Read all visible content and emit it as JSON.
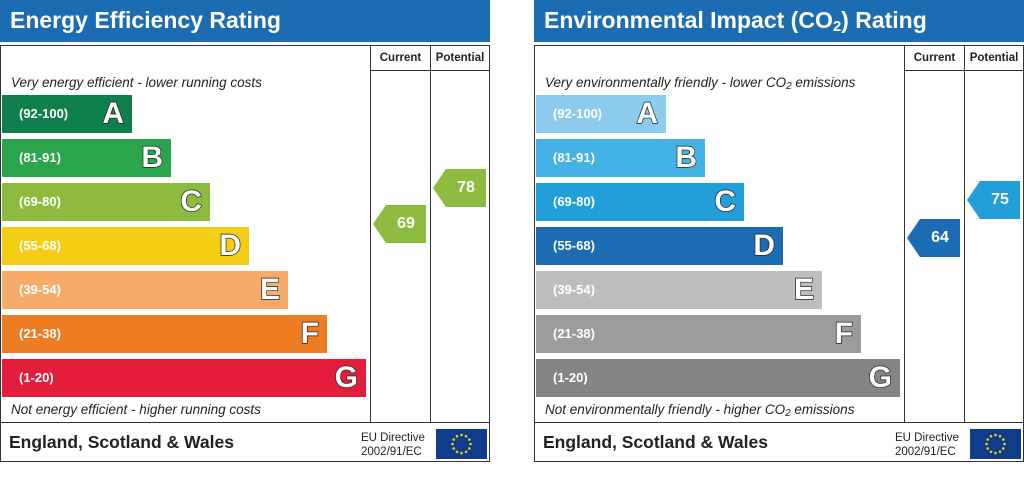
{
  "chart_data": [
    {
      "type": "bar",
      "title": "Energy Efficiency Rating",
      "columns": [
        "Current",
        "Potential"
      ],
      "top_note": "Very energy efficient - lower running costs",
      "bottom_note": "Not energy efficient - higher running costs",
      "bands": [
        {
          "range": "(92-100)",
          "letter": "A",
          "color": "#0f7f4b",
          "min": 92
        },
        {
          "range": "(81-91)",
          "letter": "B",
          "color": "#2aa54b",
          "min": 81
        },
        {
          "range": "(69-80)",
          "letter": "C",
          "color": "#8cbb3f",
          "min": 69
        },
        {
          "range": "(55-68)",
          "letter": "D",
          "color": "#f5cd14",
          "min": 55
        },
        {
          "range": "(39-54)",
          "letter": "E",
          "color": "#f5ac6a",
          "min": 39
        },
        {
          "range": "(21-38)",
          "letter": "F",
          "color": "#ee7c22",
          "min": 21
        },
        {
          "range": "(1-20)",
          "letter": "G",
          "color": "#e31d3b",
          "min": 1
        }
      ],
      "current": {
        "value": 69,
        "label": "69",
        "color": "#8cbb3f"
      },
      "potential": {
        "value": 78,
        "label": "78",
        "color": "#8cbb3f"
      },
      "region": "England, Scotland & Wales",
      "directive": [
        "EU Directive",
        "2002/91/EC"
      ]
    },
    {
      "type": "bar",
      "title": "Environmental Impact (CO2) Rating",
      "columns": [
        "Current",
        "Potential"
      ],
      "top_note": "Very environmentally friendly - lower CO2 emissions",
      "bottom_note": "Not environmentally friendly - higher CO2 emissions",
      "bands": [
        {
          "range": "(92-100)",
          "letter": "A",
          "color": "#8ccbee",
          "min": 92
        },
        {
          "range": "(81-91)",
          "letter": "B",
          "color": "#45b2e6",
          "min": 81
        },
        {
          "range": "(69-80)",
          "letter": "C",
          "color": "#229fd9",
          "min": 69
        },
        {
          "range": "(55-68)",
          "letter": "D",
          "color": "#1c6cb4",
          "min": 55
        },
        {
          "range": "(39-54)",
          "letter": "E",
          "color": "#bdbdbd",
          "min": 39
        },
        {
          "range": "(21-38)",
          "letter": "F",
          "color": "#9c9c9c",
          "min": 21
        },
        {
          "range": "(1-20)",
          "letter": "G",
          "color": "#858585",
          "min": 1
        }
      ],
      "current": {
        "value": 64,
        "label": "64",
        "color": "#1c6cb4"
      },
      "potential": {
        "value": 75,
        "label": "75",
        "color": "#229fd9"
      },
      "region": "England, Scotland & Wales",
      "directive": [
        "EU Directive",
        "2002/91/EC"
      ]
    }
  ]
}
